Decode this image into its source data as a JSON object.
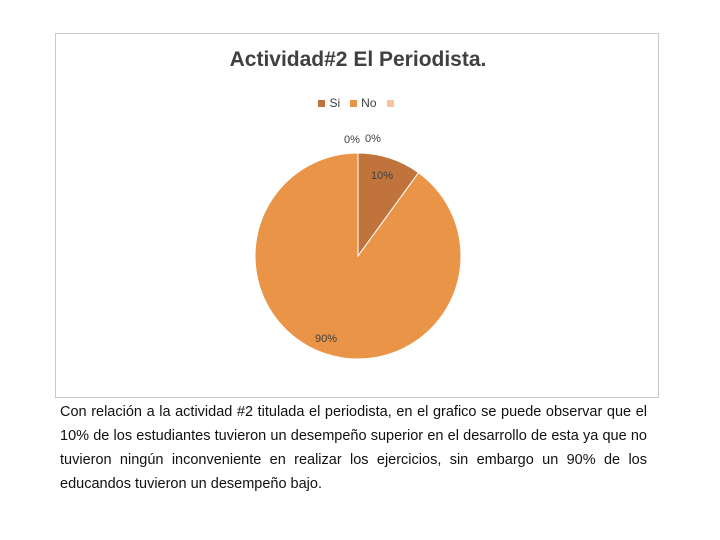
{
  "chart_data": {
    "type": "pie",
    "title": "Actividad#2 El Periodista.",
    "categories": [
      "Si",
      "No",
      ""
    ],
    "values": [
      10,
      90,
      0
    ],
    "labels": [
      "10%",
      "90%",
      "0%"
    ],
    "extra_labels": [
      "0%"
    ],
    "colors": [
      "#c0743b",
      "#e99447",
      "#f7c4a0"
    ],
    "legend_position": "top"
  },
  "caption": "Con relación a la actividad #2 titulada el periodista, en el grafico se puede observar que el 10% de los estudiantes tuvieron un desempeño superior en el desarrollo de esta ya que no tuvieron ningún inconveniente en realizar los ejercicios, sin embargo un 90% de los educandos tuvieron un desempeño bajo."
}
